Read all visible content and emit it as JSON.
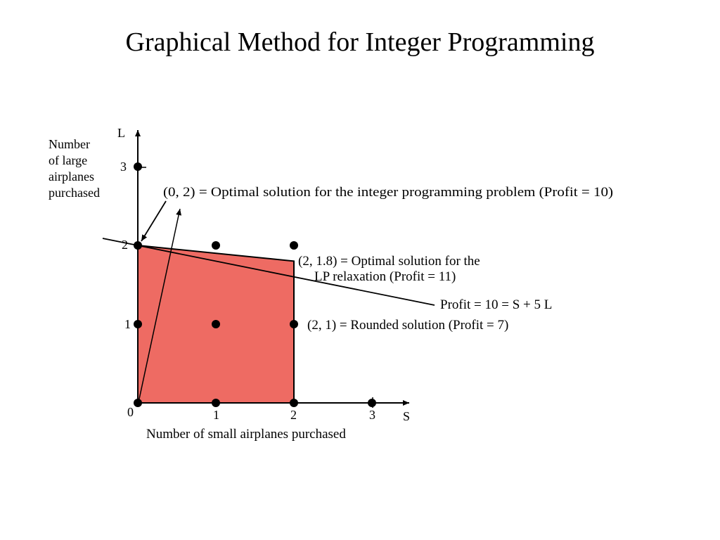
{
  "title": "Graphical Method for Integer Programming",
  "axes": {
    "x_letter": "S",
    "y_letter": "L",
    "origin_label": "0",
    "x_ticks": [
      "1",
      "2",
      "3"
    ],
    "y_ticks": [
      "1",
      "2",
      "3"
    ],
    "x_description": "Number of small airplanes purchased",
    "y_description": [
      "Number",
      "of large",
      "airplanes",
      "purchased"
    ]
  },
  "annotations": {
    "integer_optimum": "(0, 2) = Optimal solution for the integer programming problem (Profit = 10)",
    "lp_optimum_line1": "(2, 1.8) = Optimal solution for the",
    "lp_optimum_line2": "LP relaxation  (Profit = 11)",
    "profit_line": "Profit = 10 = S  + 5 L",
    "rounded": "(2, 1) = Rounded solution  (Profit = 7)"
  },
  "colors": {
    "feasible_region": "#ee6b63",
    "ink": "#000000"
  },
  "feasible_region": [
    [
      0,
      0
    ],
    [
      0,
      2
    ],
    [
      2,
      1.8
    ],
    [
      2,
      0
    ]
  ],
  "integer_points": [
    [
      0,
      0
    ],
    [
      1,
      0
    ],
    [
      2,
      0
    ],
    [
      3,
      0
    ],
    [
      0,
      1
    ],
    [
      1,
      1
    ],
    [
      2,
      1
    ],
    [
      0,
      2
    ],
    [
      1,
      2
    ],
    [
      2,
      2
    ],
    [
      0,
      3
    ]
  ],
  "profit_line_formula": {
    "S_coefficient": 1,
    "L_coefficient": 5,
    "profit": 10
  }
}
